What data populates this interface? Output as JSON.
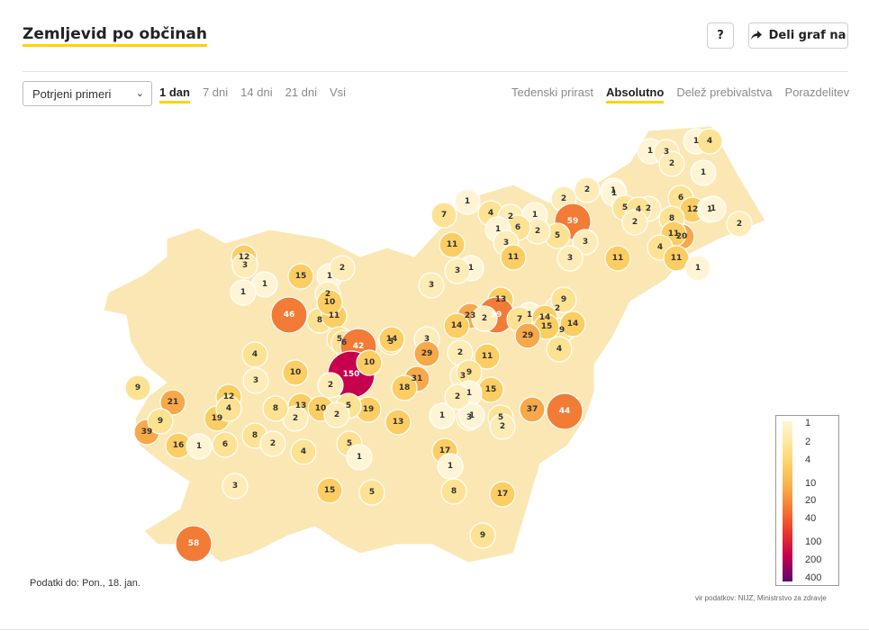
{
  "title": "Zemljevid po občinah",
  "buttons": {
    "help": "?",
    "share": "Deli graf na"
  },
  "filter": {
    "selected": "Potrjeni primeri"
  },
  "period_tabs": [
    "1 dan",
    "7 dni",
    "14 dni",
    "21 dni",
    "Vsi"
  ],
  "period_active": "1 dan",
  "mode_tabs": [
    "Tedenski prirast",
    "Absolutno",
    "Delež prebivalstva",
    "Porazdelitev"
  ],
  "mode_active": "Absolutno",
  "legend": {
    "labels": [
      "1",
      "2",
      "4",
      "10",
      "20",
      "40",
      "100",
      "200",
      "400"
    ]
  },
  "footnote": "Podatki do: Pon., 18. jan.",
  "source": "vir podatkov: NIJZ, Ministrstvo za zdravje",
  "colors": {
    "accent": "#ffd400",
    "scale_low": "#fff5d6",
    "scale_high": "#5a0a6e"
  },
  "map_data": {
    "values": [
      1,
      4,
      1,
      3,
      2,
      1,
      6,
      20,
      12,
      1,
      2,
      2,
      2,
      1,
      8,
      11,
      4,
      11,
      1,
      1,
      2,
      59,
      5,
      3,
      3,
      11,
      1,
      5,
      4,
      2,
      7,
      1,
      4,
      2,
      1,
      2,
      6,
      11,
      1,
      3,
      12,
      15,
      1,
      2,
      3,
      1,
      1,
      3,
      11,
      1,
      3,
      46,
      8,
      11,
      2,
      13,
      59,
      1,
      2,
      7,
      14,
      9,
      23,
      14,
      2,
      15,
      29,
      5,
      3,
      14,
      9,
      10,
      5,
      6,
      42,
      14,
      29,
      2,
      11,
      4,
      150,
      10,
      31,
      18,
      3,
      9,
      4,
      3,
      10,
      2,
      15,
      1,
      3,
      1,
      21,
      12,
      19,
      13,
      10,
      2,
      1,
      37,
      44,
      19,
      13,
      5,
      2,
      2,
      5,
      2,
      8,
      4,
      9,
      39,
      9,
      16,
      1,
      6,
      8,
      4,
      5,
      2,
      3,
      17,
      1,
      1,
      5,
      15,
      8,
      58,
      9,
      17
    ]
  }
}
